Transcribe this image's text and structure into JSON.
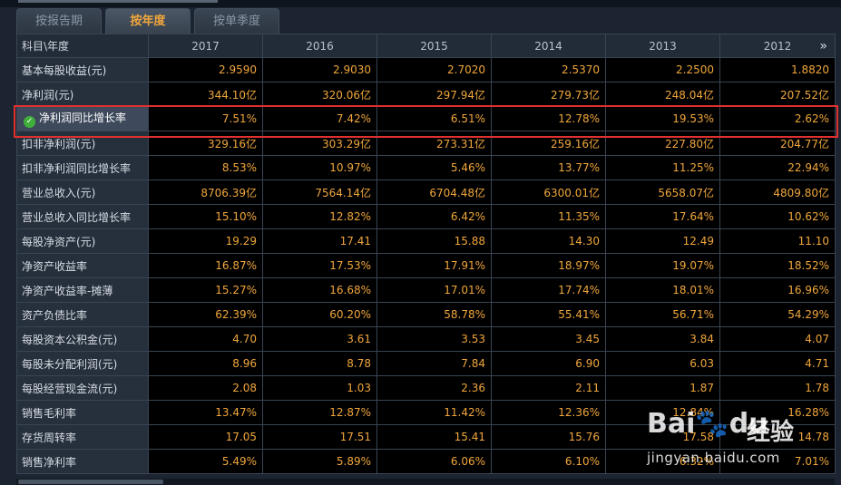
{
  "tabs": [
    "按报告期",
    "按年度",
    "按单季度"
  ],
  "active_tab": 1,
  "header": {
    "corner": "科目\\年度",
    "years": [
      "2017",
      "2016",
      "2015",
      "2014",
      "2013",
      "2012"
    ],
    "more": "»"
  },
  "rows": [
    {
      "label": "基本每股收益(元)",
      "values": [
        "2.9590",
        "2.9030",
        "2.7020",
        "2.5370",
        "2.2500",
        "1.8820"
      ]
    },
    {
      "label": "净利润(元)",
      "values": [
        "344.10亿",
        "320.06亿",
        "297.94亿",
        "279.73亿",
        "248.04亿",
        "207.52亿"
      ]
    },
    {
      "label": "净利润同比增长率",
      "values": [
        "7.51%",
        "7.42%",
        "6.51%",
        "12.78%",
        "19.53%",
        "2.62%"
      ],
      "highlight": true
    },
    {
      "label": "扣非净利润(元)",
      "values": [
        "329.16亿",
        "303.29亿",
        "273.31亿",
        "259.16亿",
        "227.80亿",
        "204.77亿"
      ]
    },
    {
      "label": "扣非净利润同比增长率",
      "values": [
        "8.53%",
        "10.97%",
        "5.46%",
        "13.77%",
        "11.25%",
        "22.94%"
      ]
    },
    {
      "label": "营业总收入(元)",
      "values": [
        "8706.39亿",
        "7564.14亿",
        "6704.48亿",
        "6300.01亿",
        "5658.07亿",
        "4809.80亿"
      ]
    },
    {
      "label": "营业总收入同比增长率",
      "values": [
        "15.10%",
        "12.82%",
        "6.42%",
        "11.35%",
        "17.64%",
        "10.62%"
      ]
    },
    {
      "label": "每股净资产(元)",
      "values": [
        "19.29",
        "17.41",
        "15.88",
        "14.30",
        "12.49",
        "11.10"
      ]
    },
    {
      "label": "净资产收益率",
      "values": [
        "16.87%",
        "17.53%",
        "17.91%",
        "18.97%",
        "19.07%",
        "18.52%"
      ]
    },
    {
      "label": "净资产收益率-摊薄",
      "values": [
        "15.27%",
        "16.68%",
        "17.01%",
        "17.74%",
        "18.01%",
        "16.96%"
      ]
    },
    {
      "label": "资产负债比率",
      "values": [
        "62.39%",
        "60.20%",
        "58.78%",
        "55.41%",
        "56.71%",
        "54.29%"
      ]
    },
    {
      "label": "每股资本公积金(元)",
      "values": [
        "4.70",
        "3.61",
        "3.53",
        "3.45",
        "3.84",
        "4.07"
      ]
    },
    {
      "label": "每股未分配利润(元)",
      "values": [
        "8.96",
        "8.78",
        "7.84",
        "6.90",
        "6.03",
        "4.71"
      ]
    },
    {
      "label": "每股经营现金流(元)",
      "values": [
        "2.08",
        "1.03",
        "2.36",
        "2.11",
        "1.87",
        "1.78"
      ]
    },
    {
      "label": "销售毛利率",
      "values": [
        "13.47%",
        "12.87%",
        "11.42%",
        "12.36%",
        "12.84%",
        "16.28%"
      ]
    },
    {
      "label": "存货周转率",
      "values": [
        "17.05",
        "17.51",
        "15.41",
        "15.76",
        "17.58",
        "14.78"
      ]
    },
    {
      "label": "销售净利率",
      "values": [
        "5.49%",
        "5.89%",
        "6.06%",
        "6.10%",
        "6.32%",
        "7.01%"
      ]
    }
  ],
  "watermark": {
    "logo": "Bai",
    "logo_tail": "du",
    "text": "经验",
    "url": "jingyan.baidu.com"
  },
  "colors": {
    "value": "#f0a63c",
    "highlight_border": "#e03030",
    "check": "#3fae3a"
  }
}
